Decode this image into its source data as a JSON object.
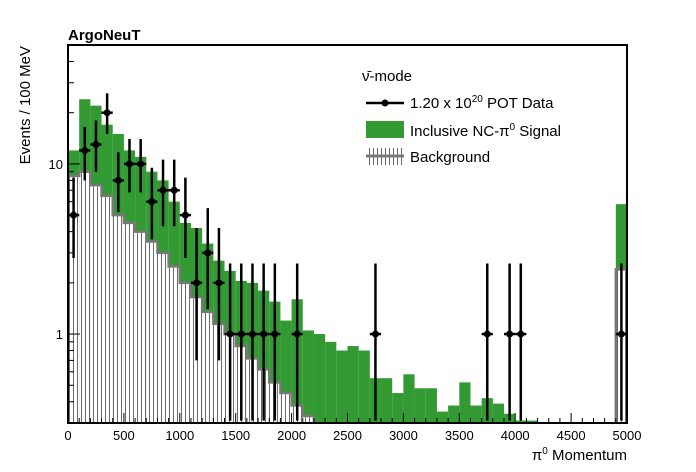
{
  "chart_data": {
    "type": "bar",
    "title": "ArgoNeuT",
    "xlabel_prefix": "π",
    "xlabel_sup": "0",
    "xlabel_suffix": " Momentum",
    "ylabel": "Events / 100 MeV",
    "xlim": [
      0,
      5000
    ],
    "ylim": [
      0.3,
      50
    ],
    "yscale": "log",
    "bin_width": 100,
    "x_ticks": [
      0,
      500,
      1000,
      1500,
      2000,
      2500,
      3000,
      3500,
      4000,
      4500,
      5000
    ],
    "y_ticks": [
      1,
      10
    ],
    "legend": {
      "header": "ν̄-mode",
      "data_label_pre": "1.20 x 10",
      "data_label_sup": "20",
      "data_label_post": " POT Data",
      "signal_label_pre": "Inclusive NC-π",
      "signal_label_sup": "0",
      "signal_label_post": " Signal",
      "background_label": "Background"
    },
    "colors": {
      "signal": "#339933",
      "background_line": "#777777",
      "background_hatch": "#444444",
      "data": "#000000"
    },
    "background_bins": [
      {
        "x": 0,
        "value": 8.5
      },
      {
        "x": 100,
        "value": 9.0
      },
      {
        "x": 200,
        "value": 7.5
      },
      {
        "x": 300,
        "value": 6.5
      },
      {
        "x": 400,
        "value": 5.0
      },
      {
        "x": 500,
        "value": 4.5
      },
      {
        "x": 600,
        "value": 4.0
      },
      {
        "x": 700,
        "value": 3.5
      },
      {
        "x": 800,
        "value": 3.0
      },
      {
        "x": 900,
        "value": 2.5
      },
      {
        "x": 1000,
        "value": 2.0
      },
      {
        "x": 1100,
        "value": 1.65
      },
      {
        "x": 1200,
        "value": 1.35
      },
      {
        "x": 1300,
        "value": 1.15
      },
      {
        "x": 1400,
        "value": 1.0
      },
      {
        "x": 1500,
        "value": 0.85
      },
      {
        "x": 1600,
        "value": 0.72
      },
      {
        "x": 1700,
        "value": 0.62
      },
      {
        "x": 1800,
        "value": 0.52
      },
      {
        "x": 1900,
        "value": 0.45
      },
      {
        "x": 2000,
        "value": 0.38
      },
      {
        "x": 2100,
        "value": 0.33
      },
      {
        "x": 4900,
        "value": 2.4
      }
    ],
    "signal_bins": [
      {
        "x": 0,
        "value": 12
      },
      {
        "x": 100,
        "value": 24
      },
      {
        "x": 200,
        "value": 22
      },
      {
        "x": 300,
        "value": 17
      },
      {
        "x": 400,
        "value": 15
      },
      {
        "x": 500,
        "value": 12
      },
      {
        "x": 600,
        "value": 11
      },
      {
        "x": 700,
        "value": 9
      },
      {
        "x": 800,
        "value": 8
      },
      {
        "x": 900,
        "value": 6
      },
      {
        "x": 1000,
        "value": 4.5
      },
      {
        "x": 1100,
        "value": 4.2
      },
      {
        "x": 1200,
        "value": 3.4
      },
      {
        "x": 1300,
        "value": 2.7
      },
      {
        "x": 1400,
        "value": 2.35
      },
      {
        "x": 1500,
        "value": 2.05
      },
      {
        "x": 1600,
        "value": 2.0
      },
      {
        "x": 1700,
        "value": 1.8
      },
      {
        "x": 1800,
        "value": 1.55
      },
      {
        "x": 1900,
        "value": 1.2
      },
      {
        "x": 2000,
        "value": 1.6
      },
      {
        "x": 2100,
        "value": 1.05
      },
      {
        "x": 2200,
        "value": 1.0
      },
      {
        "x": 2300,
        "value": 0.9
      },
      {
        "x": 2400,
        "value": 0.8
      },
      {
        "x": 2500,
        "value": 0.85
      },
      {
        "x": 2600,
        "value": 0.8
      },
      {
        "x": 2700,
        "value": 0.55
      },
      {
        "x": 2800,
        "value": 0.55
      },
      {
        "x": 2900,
        "value": 0.45
      },
      {
        "x": 3000,
        "value": 0.58
      },
      {
        "x": 3100,
        "value": 0.48
      },
      {
        "x": 3200,
        "value": 0.48
      },
      {
        "x": 3300,
        "value": 0.35
      },
      {
        "x": 3400,
        "value": 0.38
      },
      {
        "x": 3500,
        "value": 0.52
      },
      {
        "x": 3600,
        "value": 0.38
      },
      {
        "x": 3700,
        "value": 0.42
      },
      {
        "x": 3800,
        "value": 0.39
      },
      {
        "x": 3900,
        "value": 0.34
      },
      {
        "x": 4000,
        "value": 0.31
      },
      {
        "x": 4100,
        "value": 0.31
      },
      {
        "x": 4900,
        "value": 5.8
      }
    ],
    "data_points": [
      {
        "x": 50,
        "y": 5,
        "err_low": 2.8,
        "err_high": 8.3
      },
      {
        "x": 150,
        "y": 12,
        "err_low": 8,
        "err_high": 16.5
      },
      {
        "x": 250,
        "y": 13,
        "err_low": 9,
        "err_high": 18
      },
      {
        "x": 350,
        "y": 20,
        "err_low": 15,
        "err_high": 26
      },
      {
        "x": 450,
        "y": 8,
        "err_low": 5.2,
        "err_high": 11.7
      },
      {
        "x": 550,
        "y": 10,
        "err_low": 6.8,
        "err_high": 14
      },
      {
        "x": 650,
        "y": 10,
        "err_low": 6.8,
        "err_high": 14
      },
      {
        "x": 750,
        "y": 6,
        "err_low": 3.6,
        "err_high": 9.5
      },
      {
        "x": 850,
        "y": 7,
        "err_low": 4.3,
        "err_high": 10.6
      },
      {
        "x": 950,
        "y": 7,
        "err_low": 4.3,
        "err_high": 10.6
      },
      {
        "x": 1050,
        "y": 5,
        "err_low": 2.8,
        "err_high": 8.3
      },
      {
        "x": 1150,
        "y": 2,
        "err_low": 0.7,
        "err_high": 4.2
      },
      {
        "x": 1250,
        "y": 3,
        "err_low": 1.4,
        "err_high": 5.5
      },
      {
        "x": 1350,
        "y": 2,
        "err_low": 0.7,
        "err_high": 4.2
      },
      {
        "x": 1450,
        "y": 1,
        "err_low": 0.31,
        "err_high": 2.6
      },
      {
        "x": 1550,
        "y": 1,
        "err_low": 0.31,
        "err_high": 2.6
      },
      {
        "x": 1650,
        "y": 1,
        "err_low": 0.31,
        "err_high": 2.6
      },
      {
        "x": 1750,
        "y": 1,
        "err_low": 0.31,
        "err_high": 2.6
      },
      {
        "x": 1850,
        "y": 1,
        "err_low": 0.31,
        "err_high": 2.6
      },
      {
        "x": 2050,
        "y": 1,
        "err_low": 0.31,
        "err_high": 2.6
      },
      {
        "x": 2750,
        "y": 1,
        "err_low": 0.31,
        "err_high": 2.6
      },
      {
        "x": 3750,
        "y": 1,
        "err_low": 0.31,
        "err_high": 2.6
      },
      {
        "x": 3950,
        "y": 1,
        "err_low": 0.31,
        "err_high": 2.6
      },
      {
        "x": 4050,
        "y": 1,
        "err_low": 0.31,
        "err_high": 2.6
      },
      {
        "x": 4950,
        "y": 1,
        "err_low": 0.31,
        "err_high": 2.6
      }
    ]
  }
}
